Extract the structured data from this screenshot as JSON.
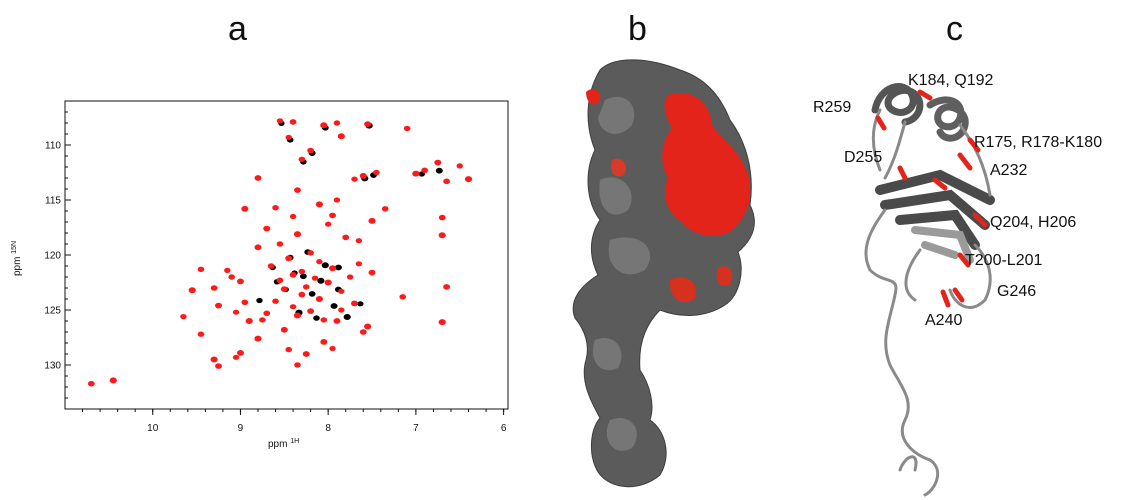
{
  "panels": {
    "a": "a",
    "b": "b",
    "c": "c"
  },
  "colors": {
    "spectrum_free": "#000000",
    "spectrum_bound": "#ff1a1a",
    "surface_grey": "#5a5a5a",
    "surface_light": "#8a8a8a",
    "highlight_red": "#e3241b"
  },
  "chart_data": {
    "type": "scatter",
    "xlabel": "ppm",
    "xlabel_nucleus": "1H",
    "ylabel": "ppm",
    "ylabel_nucleus": "15N",
    "x_ticks": [
      "10",
      "9",
      "8",
      "7",
      "6"
    ],
    "y_ticks": [
      "110",
      "115",
      "120",
      "125",
      "130"
    ],
    "x_tick_values": [
      10,
      9,
      8,
      7,
      6
    ],
    "y_tick_values": [
      110,
      115,
      120,
      125,
      130
    ],
    "xlim": [
      11.0,
      5.95
    ],
    "ylim": [
      106.0,
      134.0
    ],
    "x_reversed": true,
    "y_reversed": true,
    "series": [
      {
        "color": "#000000",
        "points": [
          [
            8.55,
            107.9
          ],
          [
            8.05,
            108.3
          ],
          [
            7.55,
            108.1
          ],
          [
            8.3,
            111.4
          ],
          [
            6.75,
            112.2
          ],
          [
            6.95,
            112.5
          ],
          [
            7.5,
            112.6
          ],
          [
            7.6,
            112.9
          ],
          [
            8.45,
            109.4
          ],
          [
            8.2,
            110.6
          ],
          [
            8.4,
            121.5
          ],
          [
            8.3,
            121.8
          ],
          [
            8.1,
            122.2
          ],
          [
            8.6,
            122.3
          ],
          [
            7.9,
            121.0
          ],
          [
            8.5,
            123.0
          ],
          [
            8.2,
            123.4
          ],
          [
            8.35,
            125.1
          ],
          [
            8.15,
            125.6
          ],
          [
            7.95,
            124.5
          ],
          [
            7.65,
            124.3
          ],
          [
            8.45,
            120.1
          ],
          [
            8.05,
            120.8
          ],
          [
            8.65,
            121.0
          ],
          [
            7.9,
            123.0
          ],
          [
            8.8,
            124.0
          ],
          [
            8.25,
            119.6
          ],
          [
            7.8,
            125.5
          ]
        ]
      },
      {
        "color": "#ff1a1a",
        "points": [
          [
            8.55,
            107.8
          ],
          [
            8.4,
            107.9
          ],
          [
            8.05,
            108.2
          ],
          [
            7.9,
            108.0
          ],
          [
            7.55,
            108.1
          ],
          [
            8.45,
            109.3
          ],
          [
            8.2,
            110.5
          ],
          [
            7.85,
            109.2
          ],
          [
            7.1,
            108.5
          ],
          [
            6.75,
            111.6
          ],
          [
            6.5,
            111.9
          ],
          [
            6.9,
            112.3
          ],
          [
            7.0,
            112.6
          ],
          [
            7.45,
            112.5
          ],
          [
            7.6,
            112.8
          ],
          [
            7.7,
            113.1
          ],
          [
            6.65,
            113.3
          ],
          [
            6.4,
            113.1
          ],
          [
            8.3,
            111.3
          ],
          [
            8.8,
            113.0
          ],
          [
            7.9,
            115.0
          ],
          [
            8.35,
            114.1
          ],
          [
            8.1,
            115.4
          ],
          [
            8.6,
            115.7
          ],
          [
            8.95,
            115.8
          ],
          [
            8.4,
            116.5
          ],
          [
            7.95,
            116.4
          ],
          [
            7.5,
            116.9
          ],
          [
            7.35,
            115.8
          ],
          [
            8.7,
            117.6
          ],
          [
            8.0,
            117.2
          ],
          [
            7.8,
            118.4
          ],
          [
            8.35,
            118.1
          ],
          [
            8.55,
            119.0
          ],
          [
            8.8,
            119.3
          ],
          [
            7.65,
            118.7
          ],
          [
            6.7,
            116.6
          ],
          [
            6.7,
            118.2
          ],
          [
            8.2,
            119.8
          ],
          [
            8.45,
            120.3
          ],
          [
            8.1,
            120.6
          ],
          [
            8.65,
            121.0
          ],
          [
            7.95,
            121.2
          ],
          [
            8.3,
            121.5
          ],
          [
            8.4,
            121.8
          ],
          [
            8.15,
            122.1
          ],
          [
            8.55,
            122.3
          ],
          [
            8.0,
            122.5
          ],
          [
            8.25,
            122.9
          ],
          [
            8.5,
            123.1
          ],
          [
            7.85,
            123.3
          ],
          [
            8.3,
            123.6
          ],
          [
            8.1,
            124.0
          ],
          [
            8.6,
            124.2
          ],
          [
            7.7,
            124.4
          ],
          [
            8.4,
            124.7
          ],
          [
            8.2,
            125.1
          ],
          [
            8.35,
            125.5
          ],
          [
            8.05,
            125.9
          ],
          [
            7.9,
            126.0
          ],
          [
            7.85,
            125.0
          ],
          [
            8.7,
            125.3
          ],
          [
            8.9,
            126.0
          ],
          [
            9.1,
            122.0
          ],
          [
            9.0,
            122.4
          ],
          [
            9.15,
            121.4
          ],
          [
            9.3,
            123.0
          ],
          [
            9.55,
            123.2
          ],
          [
            9.45,
            121.3
          ],
          [
            9.25,
            124.6
          ],
          [
            9.05,
            125.2
          ],
          [
            8.95,
            124.3
          ],
          [
            8.8,
            127.6
          ],
          [
            8.45,
            128.6
          ],
          [
            9.0,
            128.9
          ],
          [
            9.05,
            129.3
          ],
          [
            9.25,
            130.1
          ],
          [
            9.3,
            129.5
          ],
          [
            8.35,
            130.0
          ],
          [
            8.25,
            129.0
          ],
          [
            7.95,
            128.5
          ],
          [
            7.6,
            127.0
          ],
          [
            7.55,
            126.5
          ],
          [
            7.15,
            123.8
          ],
          [
            7.5,
            121.6
          ],
          [
            7.65,
            120.8
          ],
          [
            6.65,
            122.9
          ],
          [
            6.7,
            126.1
          ],
          [
            9.45,
            127.2
          ],
          [
            8.05,
            127.9
          ],
          [
            7.75,
            122.0
          ],
          [
            10.7,
            131.7
          ],
          [
            10.45,
            131.4
          ],
          [
            8.75,
            125.9
          ],
          [
            8.5,
            126.8
          ],
          [
            9.65,
            125.6
          ]
        ]
      }
    ]
  },
  "structure_labels": [
    "K184, Q192",
    "R259",
    "R175, R178-K180",
    "D255",
    "A232",
    "Q204, H206",
    "T200-L201",
    "G246",
    "A240"
  ]
}
